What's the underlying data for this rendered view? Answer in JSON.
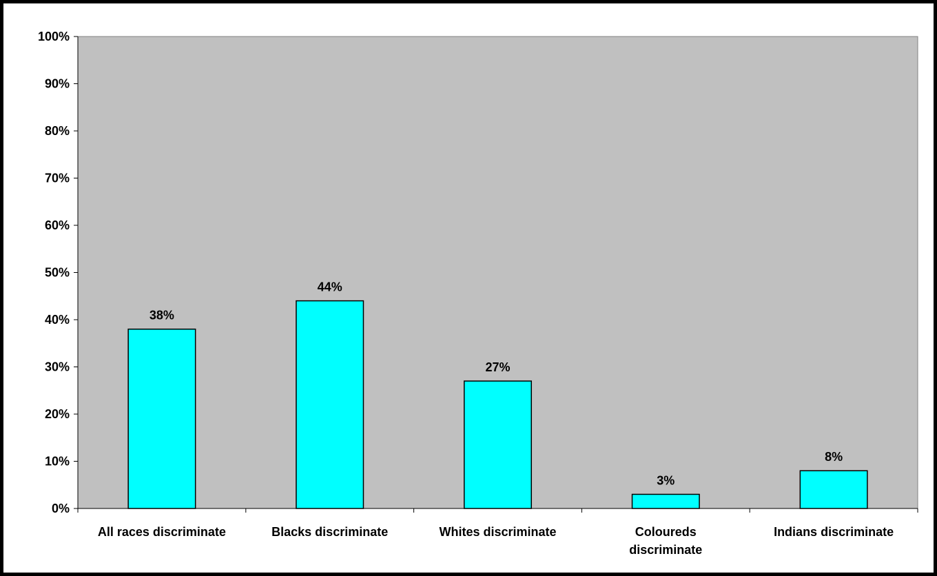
{
  "chart_data": {
    "type": "bar",
    "categories": [
      [
        "All races discriminate"
      ],
      [
        "Blacks discriminate"
      ],
      [
        "Whites discriminate"
      ],
      [
        "Coloureds",
        "discriminate"
      ],
      [
        "Indians discriminate"
      ]
    ],
    "values": [
      38,
      44,
      27,
      3,
      8
    ],
    "data_labels": [
      "38%",
      "44%",
      "27%",
      "3%",
      "8%"
    ],
    "yticks": [
      "0%",
      "10%",
      "20%",
      "30%",
      "40%",
      "50%",
      "60%",
      "70%",
      "80%",
      "90%",
      "100%"
    ],
    "ylim": [
      0,
      100
    ],
    "title": "",
    "xlabel": "",
    "ylabel": "",
    "grid": false,
    "colors": {
      "bar_fill": "#00ffff",
      "bar_stroke": "#000000",
      "plot_background": "#c0c0c0"
    }
  }
}
